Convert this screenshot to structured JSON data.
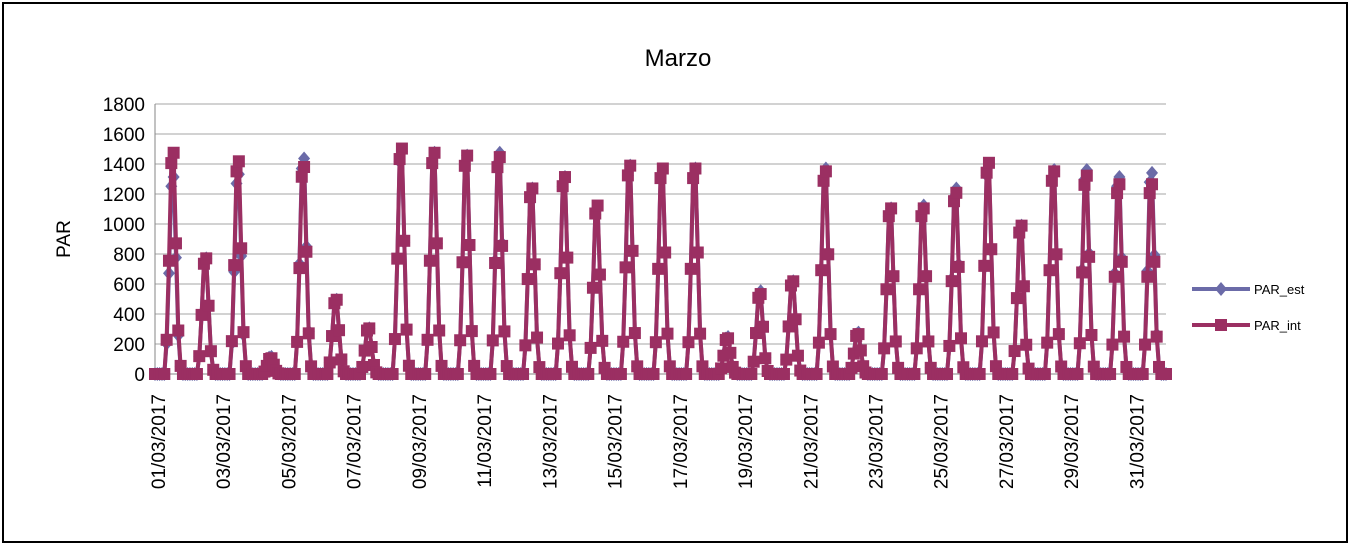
{
  "chart_data": {
    "type": "line",
    "title": "Marzo",
    "xlabel": "",
    "ylabel": "PAR",
    "ylim": [
      0,
      1800
    ],
    "yticks": [
      0,
      200,
      400,
      600,
      800,
      1000,
      1200,
      1400,
      1600,
      1800
    ],
    "grid": true,
    "legend_position": "right",
    "x_tick_labels": [
      "01/03/2017",
      "03/03/2017",
      "05/03/2017",
      "07/03/2017",
      "09/03/2017",
      "11/03/2017",
      "13/03/2017",
      "15/03/2017",
      "17/03/2017",
      "19/03/2017",
      "21/03/2017",
      "23/03/2017",
      "25/03/2017",
      "27/03/2017",
      "29/03/2017",
      "31/03/2017"
    ],
    "series": [
      {
        "name": "PAR_est",
        "color": "#6B6BA8",
        "marker": "diamond",
        "daily_peaks": [
          1380,
          810,
          1400,
          120,
          1510,
          520,
          320,
          1560,
          1550,
          1530,
          1550,
          1300,
          1380,
          1170,
          1460,
          1430,
          1440,
          260,
          580,
          650,
          1440,
          290,
          1160,
          1180,
          1300,
          1460,
          1040,
          1430,
          1430,
          1380,
          1410
        ]
      },
      {
        "name": "PAR_int",
        "color": "#9B2F62",
        "marker": "square",
        "daily_peaks": [
          1550,
          810,
          1490,
          110,
          1450,
          520,
          320,
          1580,
          1550,
          1530,
          1520,
          1300,
          1380,
          1180,
          1460,
          1440,
          1440,
          250,
          560,
          650,
          1420,
          280,
          1160,
          1160,
          1270,
          1480,
          1040,
          1420,
          1390,
          1330,
          1330
        ]
      }
    ]
  }
}
